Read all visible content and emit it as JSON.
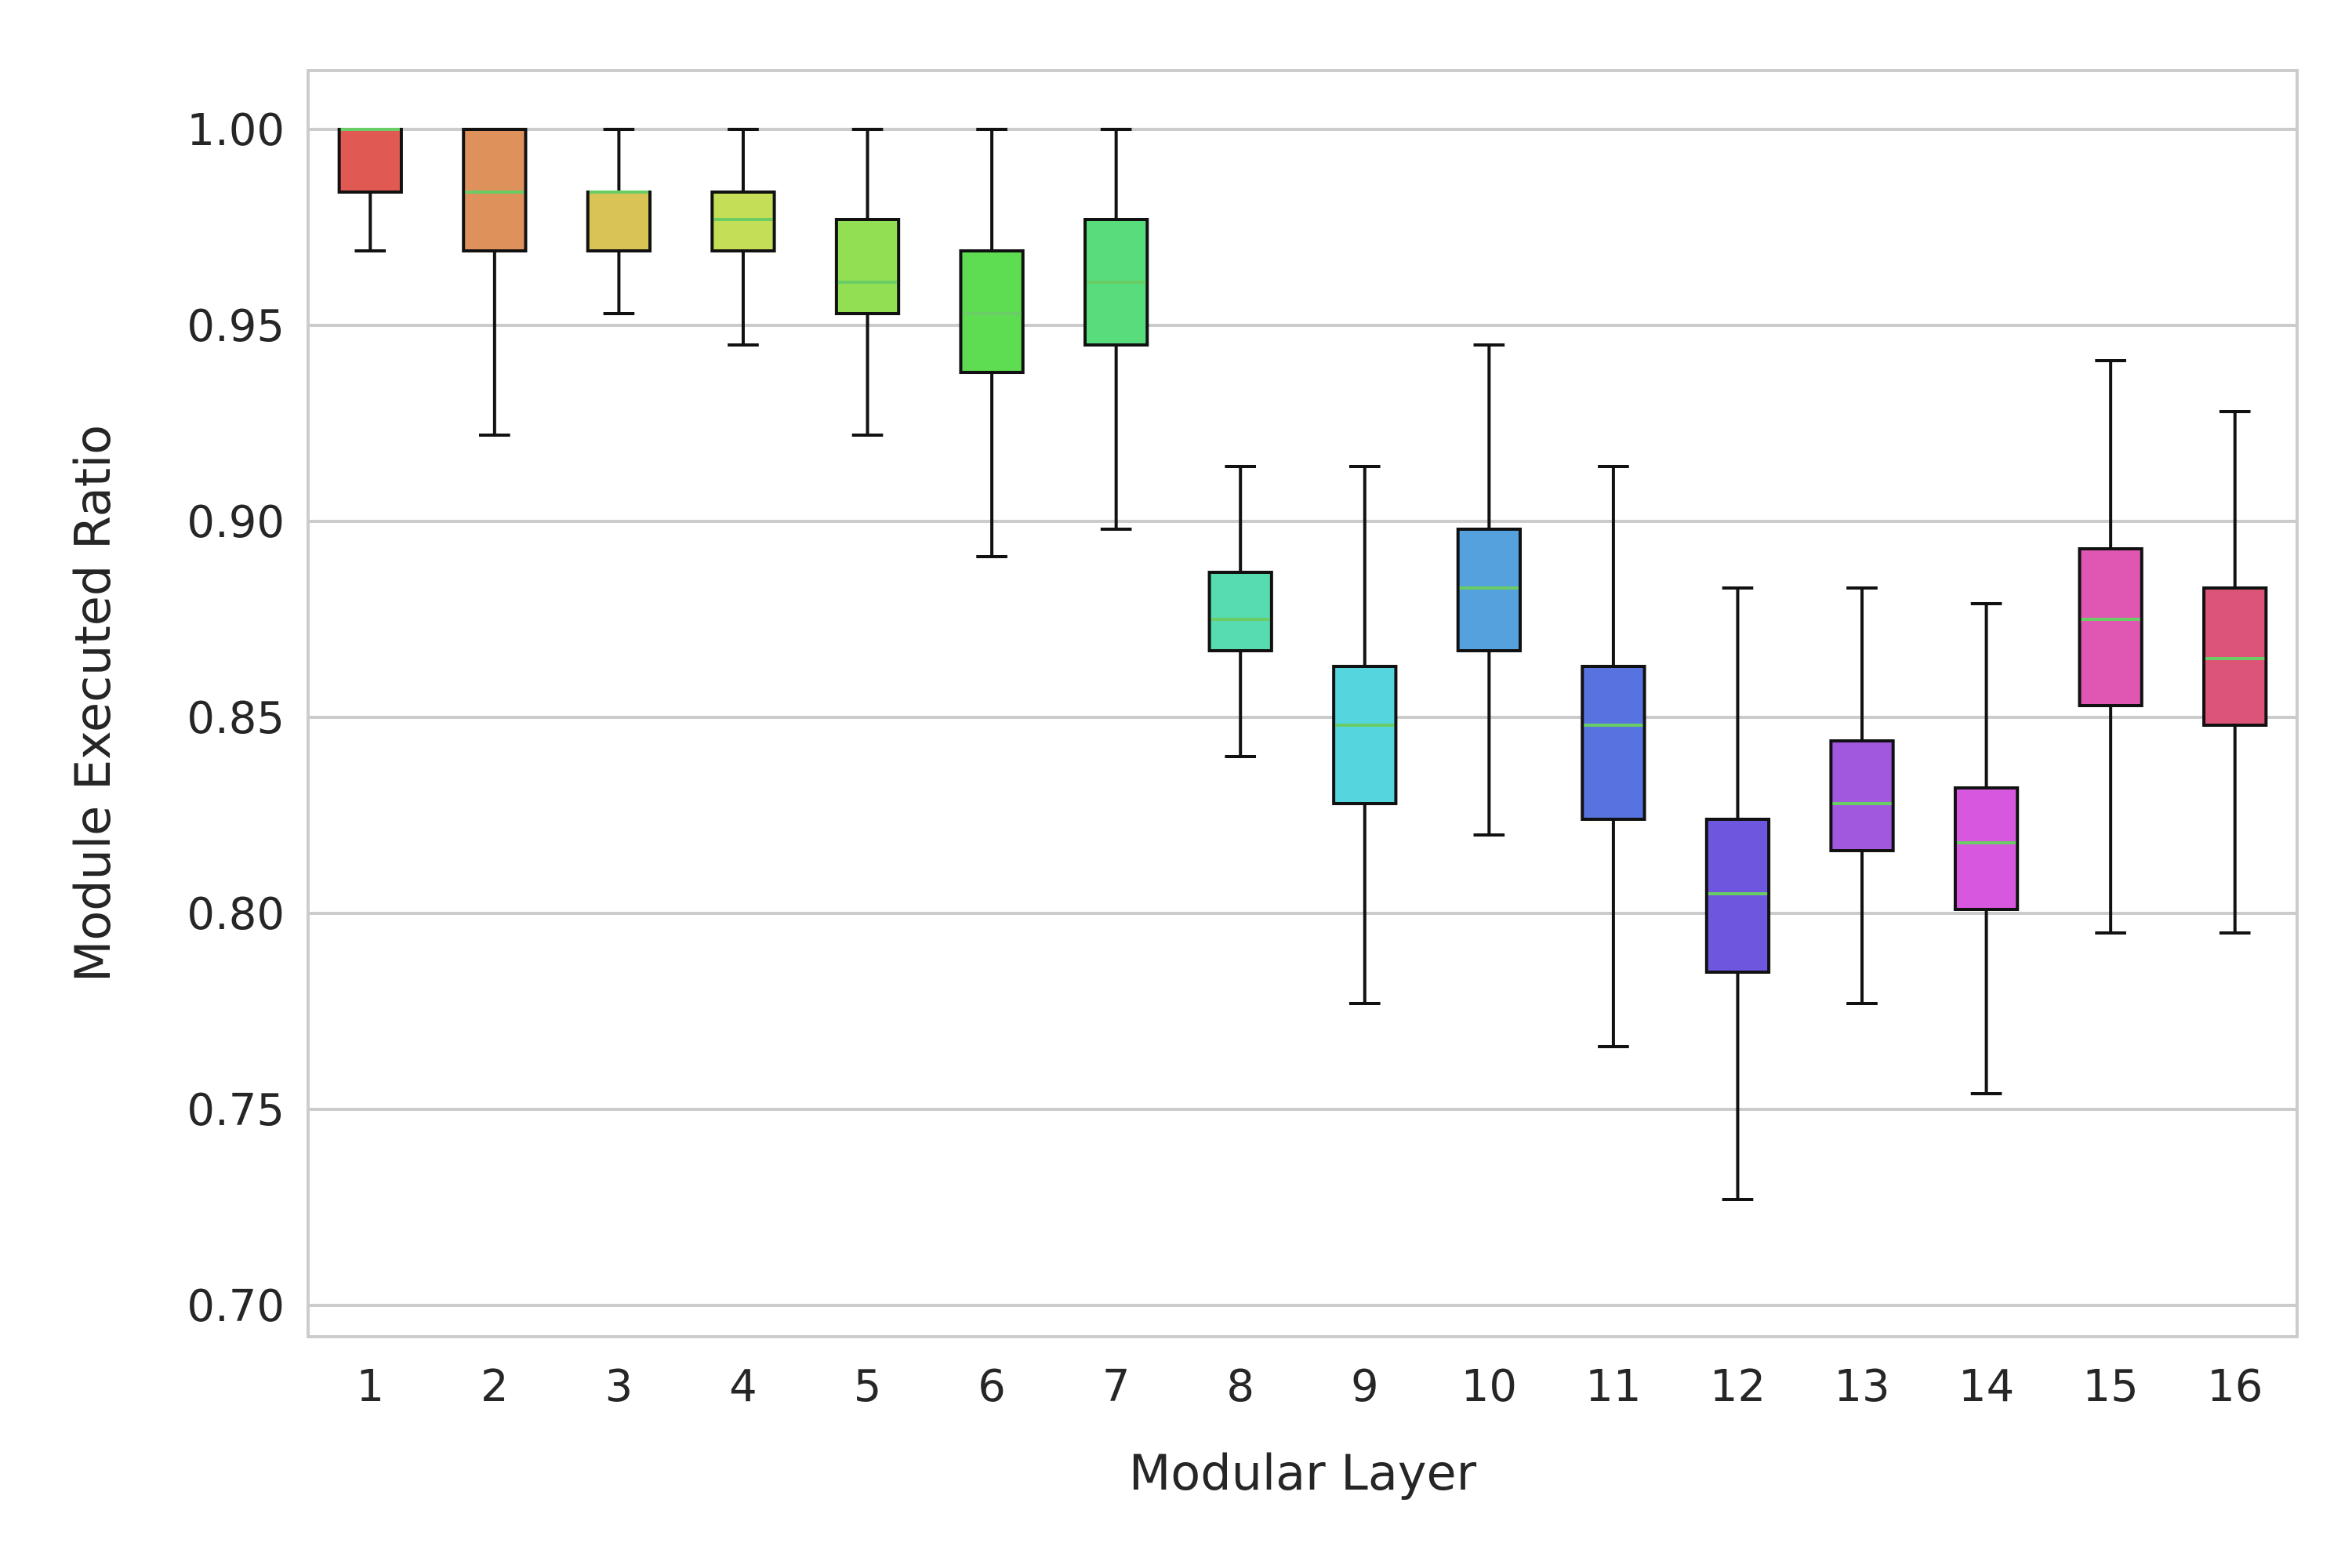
{
  "chart_data": {
    "type": "box",
    "xlabel": "Modular Layer",
    "ylabel": "Module Executed Ratio",
    "ylim": [
      0.692,
      1.015
    ],
    "yticks": [
      "0.70",
      "0.75",
      "0.80",
      "0.85",
      "0.90",
      "0.95",
      "1.00"
    ],
    "ytick_values": [
      0.7,
      0.75,
      0.8,
      0.85,
      0.9,
      0.95,
      1.0
    ],
    "grid": "horizontal",
    "median_color": "#6acc64",
    "categories": [
      "1",
      "2",
      "3",
      "4",
      "5",
      "6",
      "7",
      "8",
      "9",
      "10",
      "11",
      "12",
      "13",
      "14",
      "15",
      "16"
    ],
    "boxes": [
      {
        "label": "1",
        "whisker_low": 0.969,
        "q1": 0.984,
        "median": 1.0,
        "q3": 1.0,
        "whisker_high": 1.0,
        "color": "#e05a53"
      },
      {
        "label": "2",
        "whisker_low": 0.922,
        "q1": 0.969,
        "median": 0.984,
        "q3": 1.0,
        "whisker_high": 1.0,
        "color": "#de915a"
      },
      {
        "label": "3",
        "whisker_low": 0.953,
        "q1": 0.969,
        "median": 0.984,
        "q3": 0.984,
        "whisker_high": 1.0,
        "color": "#d9c354"
      },
      {
        "label": "4",
        "whisker_low": 0.945,
        "q1": 0.969,
        "median": 0.977,
        "q3": 0.984,
        "whisker_high": 1.0,
        "color": "#c4df57"
      },
      {
        "label": "5",
        "whisker_low": 0.922,
        "q1": 0.953,
        "median": 0.961,
        "q3": 0.977,
        "whisker_high": 1.0,
        "color": "#93df54"
      },
      {
        "label": "6",
        "whisker_low": 0.891,
        "q1": 0.938,
        "median": 0.953,
        "q3": 0.969,
        "whisker_high": 1.0,
        "color": "#5edd52"
      },
      {
        "label": "7",
        "whisker_low": 0.898,
        "q1": 0.945,
        "median": 0.961,
        "q3": 0.977,
        "whisker_high": 1.0,
        "color": "#57dd7c"
      },
      {
        "label": "8",
        "whisker_low": 0.84,
        "q1": 0.867,
        "median": 0.875,
        "q3": 0.887,
        "whisker_high": 0.914,
        "color": "#57dcb2"
      },
      {
        "label": "9",
        "whisker_low": 0.777,
        "q1": 0.828,
        "median": 0.848,
        "q3": 0.863,
        "whisker_high": 0.914,
        "color": "#55d5dd"
      },
      {
        "label": "10",
        "whisker_low": 0.82,
        "q1": 0.867,
        "median": 0.883,
        "q3": 0.898,
        "whisker_high": 0.945,
        "color": "#54a1de"
      },
      {
        "label": "11",
        "whisker_low": 0.766,
        "q1": 0.824,
        "median": 0.848,
        "q3": 0.863,
        "whisker_high": 0.914,
        "color": "#5673df"
      },
      {
        "label": "12",
        "whisker_low": 0.727,
        "q1": 0.785,
        "median": 0.805,
        "q3": 0.824,
        "whisker_high": 0.883,
        "color": "#6f56df"
      },
      {
        "label": "13",
        "whisker_low": 0.777,
        "q1": 0.816,
        "median": 0.828,
        "q3": 0.844,
        "whisker_high": 0.883,
        "color": "#a257df"
      },
      {
        "label": "14",
        "whisker_low": 0.754,
        "q1": 0.801,
        "median": 0.818,
        "q3": 0.832,
        "whisker_high": 0.879,
        "color": "#d757df"
      },
      {
        "label": "15",
        "whisker_low": 0.795,
        "q1": 0.853,
        "median": 0.875,
        "q3": 0.893,
        "whisker_high": 0.941,
        "color": "#df57b2"
      },
      {
        "label": "16",
        "whisker_low": 0.795,
        "q1": 0.848,
        "median": 0.865,
        "q3": 0.883,
        "whisker_high": 0.928,
        "color": "#dc5579"
      }
    ]
  }
}
